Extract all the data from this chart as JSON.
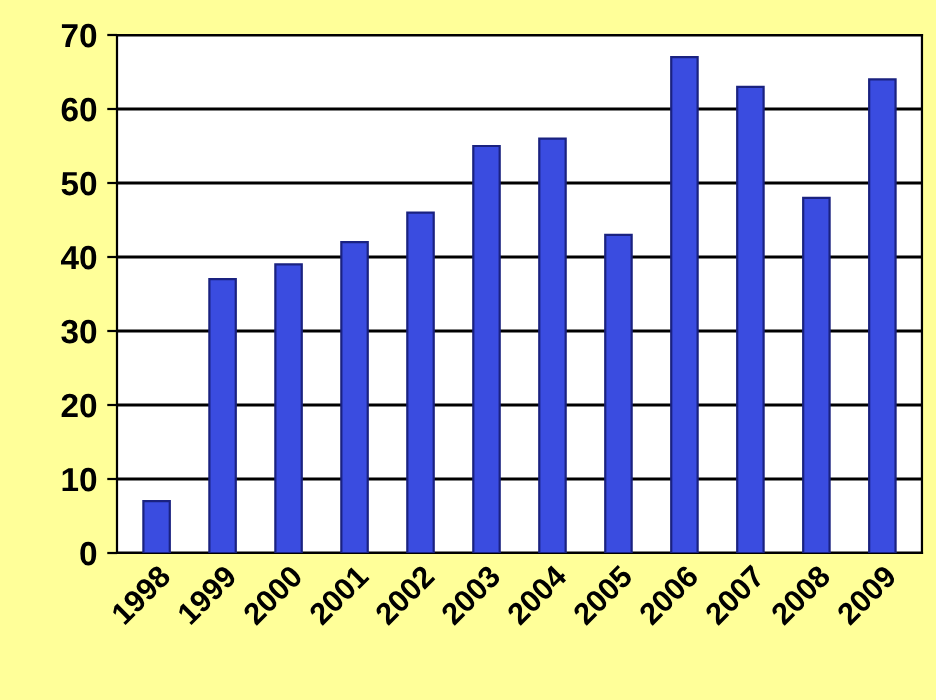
{
  "chart_data": {
    "type": "bar",
    "categories": [
      "1998",
      "1999",
      "2000",
      "2001",
      "2002",
      "2003",
      "2004",
      "2005",
      "2006",
      "2007",
      "2008",
      "2009"
    ],
    "values": [
      7,
      37,
      39,
      42,
      46,
      55,
      56,
      43,
      67,
      63,
      48,
      64
    ],
    "color": "#3a4ce0",
    "ylim": [
      0,
      70
    ],
    "yticks": [
      0,
      10,
      20,
      30,
      40,
      50,
      60,
      70
    ],
    "grid": "y",
    "legend": false
  }
}
